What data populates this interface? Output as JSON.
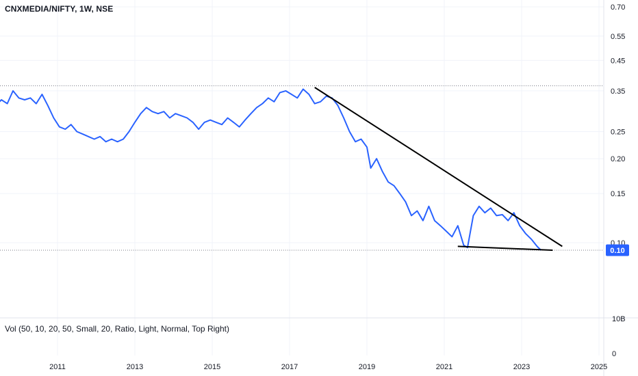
{
  "header": {
    "title": "CNXMEDIA/NIFTY, 1W, NSE"
  },
  "volume": {
    "label": "Vol (50, 10, 20, 50, Small, 20, Ratio, Light, Normal, Top Right)",
    "ticks": [
      "10B",
      "0"
    ]
  },
  "colors": {
    "series": "#2962ff",
    "badge": "#2962ff",
    "trendline": "#000000",
    "grid": "#f0f3fa"
  },
  "chart_data": {
    "type": "line",
    "title": "CNXMEDIA/NIFTY, 1W, NSE",
    "xlabel": "",
    "ylabel": "",
    "scale": "log",
    "xlim": [
      2009.0,
      2025.0
    ],
    "ylim": [
      0.058,
      0.7
    ],
    "grid": true,
    "y_ticks": [
      0.7,
      0.55,
      0.45,
      0.35,
      0.25,
      0.2,
      0.15,
      0.1
    ],
    "y_tick_labels": [
      "0.70",
      "0.55",
      "0.45",
      "0.35",
      "0.25",
      "0.20",
      "0.15",
      "0.10"
    ],
    "x_ticks": [
      2011,
      2013,
      2015,
      2017,
      2019,
      2021,
      2023,
      2025
    ],
    "x_tick_labels": [
      "2011",
      "2013",
      "2015",
      "2017",
      "2019",
      "2021",
      "2023",
      "2025"
    ],
    "last_value_label": "0.10",
    "last_value": 0.094,
    "reference_levels": [
      0.365,
      0.094
    ],
    "series": [
      {
        "x": [
          2009.0,
          2009.2,
          2009.4,
          2009.55,
          2009.7,
          2009.85,
          2010.0,
          2010.15,
          2010.3,
          2010.45,
          2010.6,
          2010.75,
          2010.9,
          2011.05,
          2011.2,
          2011.35,
          2011.5,
          2011.65,
          2011.8,
          2011.95,
          2012.1,
          2012.25,
          2012.4,
          2012.55,
          2012.7,
          2012.85,
          2013.0,
          2013.15,
          2013.3,
          2013.45,
          2013.6,
          2013.75,
          2013.9,
          2014.05,
          2014.2,
          2014.35,
          2014.5,
          2014.65,
          2014.8,
          2014.95,
          2015.1,
          2015.25,
          2015.4,
          2015.55,
          2015.7,
          2015.85,
          2016.0,
          2016.15,
          2016.3,
          2016.45,
          2016.6,
          2016.75,
          2016.9,
          2017.05,
          2017.2,
          2017.35,
          2017.5,
          2017.65,
          2017.8,
          2017.95,
          2018.1,
          2018.25,
          2018.4,
          2018.55,
          2018.7,
          2018.85,
          2019.0,
          2019.1,
          2019.25,
          2019.4,
          2019.55,
          2019.7,
          2019.85,
          2020.0,
          2020.15,
          2020.3,
          2020.45,
          2020.6,
          2020.75,
          2020.9,
          2021.05,
          2021.2,
          2021.35,
          2021.5,
          2021.6,
          2021.75,
          2021.9,
          2022.05,
          2022.2,
          2022.35,
          2022.5,
          2022.65,
          2022.8,
          2022.95,
          2023.1,
          2023.25,
          2023.4,
          2023.5
        ],
        "values": [
          0.27,
          0.29,
          0.31,
          0.325,
          0.315,
          0.35,
          0.33,
          0.325,
          0.33,
          0.315,
          0.34,
          0.31,
          0.28,
          0.26,
          0.255,
          0.265,
          0.25,
          0.245,
          0.24,
          0.235,
          0.24,
          0.23,
          0.235,
          0.23,
          0.235,
          0.25,
          0.27,
          0.29,
          0.305,
          0.295,
          0.29,
          0.295,
          0.28,
          0.29,
          0.285,
          0.28,
          0.27,
          0.255,
          0.27,
          0.275,
          0.27,
          0.265,
          0.28,
          0.27,
          0.26,
          0.275,
          0.29,
          0.305,
          0.315,
          0.33,
          0.32,
          0.345,
          0.35,
          0.34,
          0.33,
          0.355,
          0.34,
          0.315,
          0.32,
          0.335,
          0.33,
          0.31,
          0.28,
          0.25,
          0.23,
          0.235,
          0.22,
          0.185,
          0.2,
          0.18,
          0.165,
          0.16,
          0.15,
          0.14,
          0.125,
          0.13,
          0.12,
          0.135,
          0.12,
          0.115,
          0.11,
          0.105,
          0.115,
          0.098,
          0.096,
          0.125,
          0.135,
          0.128,
          0.133,
          0.125,
          0.126,
          0.12,
          0.128,
          0.115,
          0.108,
          0.103,
          0.097,
          0.094
        ]
      }
    ],
    "trendlines": [
      {
        "x": [
          2017.65,
          2024.05
        ],
        "values": [
          0.36,
          0.097
        ]
      },
      {
        "x": [
          2021.35,
          2023.8
        ],
        "values": [
          0.097,
          0.094
        ]
      }
    ]
  }
}
